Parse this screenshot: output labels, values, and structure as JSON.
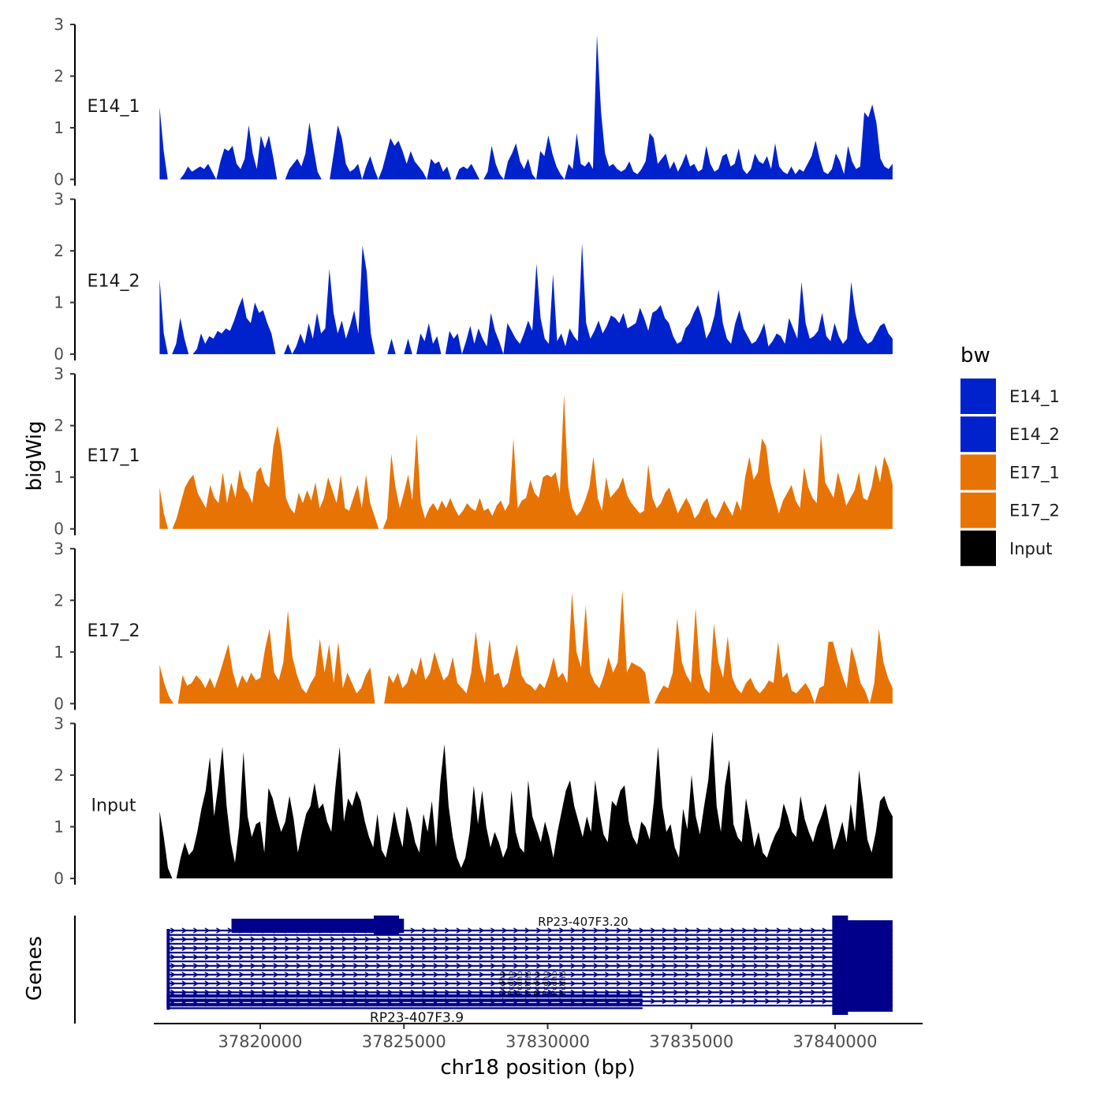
{
  "chart_data": {
    "type": "area",
    "title": "",
    "ylabel": "bigWig",
    "xlabel": "chr18 position (bp)",
    "x_range": [
      37816500,
      37842000
    ],
    "ylim": [
      0,
      3
    ],
    "y_ticks": [
      "0",
      "1",
      "2",
      "3"
    ],
    "x_ticks": [
      {
        "value": 37820000,
        "label": "37820000"
      },
      {
        "value": 37825000,
        "label": "37825000"
      },
      {
        "value": 37830000,
        "label": "37830000"
      },
      {
        "value": 37835000,
        "label": "37835000"
      },
      {
        "value": 37840000,
        "label": "37840000"
      }
    ],
    "legend": {
      "title": "bw",
      "position": "right",
      "entries": [
        {
          "label": "E14_1",
          "color": "#0022CC"
        },
        {
          "label": "E14_2",
          "color": "#0022CC"
        },
        {
          "label": "E17_1",
          "color": "#E87305"
        },
        {
          "label": "E17_2",
          "color": "#E87305"
        },
        {
          "label": "Input",
          "color": "#000000"
        }
      ]
    },
    "tracks": [
      {
        "name": "E14_1",
        "color": "#0022CC",
        "values": [
          1.4,
          0.55,
          0,
          0,
          0,
          0,
          0.1,
          0.25,
          0.15,
          0.2,
          0.25,
          0.2,
          0.3,
          0.15,
          0,
          0.35,
          0.6,
          0.55,
          0.65,
          0.3,
          0.2,
          0.4,
          1.05,
          0.5,
          0.2,
          0.85,
          0.6,
          0.85,
          0.45,
          0,
          0,
          0,
          0.2,
          0.3,
          0.4,
          0.25,
          0.5,
          1.1,
          0.6,
          0.15,
          0,
          0,
          0,
          0.5,
          1.05,
          0.8,
          0.3,
          0.15,
          0.2,
          0.3,
          0,
          0.25,
          0.45,
          0.2,
          0,
          0.2,
          0.5,
          0.8,
          0.65,
          0.75,
          0.55,
          0.3,
          0.55,
          0.35,
          0.25,
          0.15,
          0,
          0.4,
          0.3,
          0.35,
          0.15,
          0.25,
          0,
          0,
          0.2,
          0.25,
          0.2,
          0.3,
          0.15,
          0,
          0,
          0.15,
          0.65,
          0.3,
          0.1,
          0,
          0.35,
          0.5,
          0.7,
          0.35,
          0.2,
          0.4,
          0.1,
          0,
          0.55,
          0.45,
          0.85,
          0.5,
          0.25,
          0.1,
          0,
          0.3,
          0.2,
          0.9,
          0.3,
          0.25,
          0.35,
          0.2,
          2.8,
          1.3,
          0.5,
          0.25,
          0.3,
          0.2,
          0.15,
          0.2,
          0.35,
          0.15,
          0.1,
          0.2,
          0.35,
          0.9,
          0.8,
          0.3,
          0.4,
          0.5,
          0.2,
          0.35,
          0.15,
          0.3,
          0.5,
          0.25,
          0.3,
          0.15,
          0.2,
          0.65,
          0.3,
          0.15,
          0.2,
          0.45,
          0.5,
          0.25,
          0.3,
          0.6,
          0.2,
          0.1,
          0.2,
          0.5,
          0.35,
          0.3,
          0.45,
          0.2,
          0.7,
          0.25,
          0.15,
          0.1,
          0.25,
          0.1,
          0.2,
          0.15,
          0.3,
          0.45,
          0.75,
          0.4,
          0.15,
          0.1,
          0.2,
          0.5,
          0.35,
          0.1,
          0.65,
          0.35,
          0.2,
          0.25,
          1.3,
          1.2,
          1.45,
          1.1,
          0.4,
          0.25,
          0.2,
          0.3
        ]
      },
      {
        "name": "E14_2",
        "color": "#0022CC",
        "values": [
          1.45,
          0.4,
          0,
          0,
          0.2,
          0.7,
          0.3,
          0,
          0,
          0.1,
          0.4,
          0.2,
          0.35,
          0.3,
          0.45,
          0.4,
          0.5,
          0.45,
          0.65,
          0.9,
          1.1,
          0.7,
          0.6,
          1.0,
          0.8,
          0.85,
          0.6,
          0.4,
          0,
          0,
          0,
          0.2,
          0,
          0.15,
          0.4,
          0.2,
          0.6,
          0.3,
          0.8,
          0.4,
          0.5,
          1.65,
          0.8,
          0.4,
          0.65,
          0.3,
          0.55,
          0.85,
          0.4,
          2.1,
          1.6,
          0.4,
          0,
          0,
          0,
          0,
          0.3,
          0,
          0,
          0,
          0.3,
          0,
          0,
          0.4,
          0.25,
          0.6,
          0.2,
          0.35,
          0,
          0,
          0.45,
          0.3,
          0.4,
          0,
          0.25,
          0.55,
          0.2,
          0.5,
          0.3,
          0.15,
          0.8,
          0.45,
          0.25,
          0,
          0.6,
          0.45,
          0.3,
          0.2,
          0.4,
          0.65,
          0.45,
          1.75,
          0.7,
          0.3,
          0.2,
          1.55,
          0.25,
          0.4,
          0.15,
          0.5,
          0.35,
          0.25,
          2.15,
          0.6,
          0.3,
          0.45,
          0.65,
          0.4,
          0.55,
          0.75,
          0.7,
          0.6,
          0.8,
          0.5,
          0.55,
          0.6,
          0.9,
          0.7,
          0.45,
          0.8,
          0.85,
          0.95,
          0.7,
          0.6,
          0.35,
          0.2,
          0.25,
          0.5,
          0.6,
          0.8,
          0.95,
          0.7,
          0.3,
          0.45,
          0.75,
          1.25,
          0.6,
          0.3,
          0.2,
          0.6,
          0.85,
          0.5,
          0.35,
          0.2,
          0.25,
          0.4,
          0.6,
          0.15,
          0.25,
          0.4,
          0.35,
          0.2,
          0.7,
          0.5,
          0.3,
          1.4,
          0.6,
          0.3,
          0.35,
          0.45,
          0.8,
          0.35,
          0.25,
          0.6,
          0.35,
          0.2,
          0.3,
          1.4,
          0.8,
          0.45,
          0.3,
          0.2,
          0.25,
          0.4,
          0.55,
          0.6,
          0.4,
          0.3
        ]
      },
      {
        "name": "E17_1",
        "color": "#E87305",
        "values": [
          0.8,
          0.3,
          0,
          0,
          0.2,
          0.5,
          0.8,
          0.95,
          1.05,
          0.7,
          0.55,
          0.4,
          0.85,
          0.6,
          0.5,
          1.1,
          0.5,
          0.9,
          0.6,
          1.15,
          0.8,
          0.7,
          0.5,
          1.1,
          1.2,
          0.9,
          0.8,
          1.6,
          2.0,
          1.5,
          0.6,
          0.4,
          0.3,
          0.7,
          0.5,
          0.75,
          0.55,
          0.9,
          0.4,
          0.6,
          1.0,
          0.75,
          0.5,
          1.05,
          0.4,
          0.35,
          0.6,
          0.85,
          0.4,
          1.05,
          0.5,
          0.25,
          0,
          0,
          0.2,
          1.45,
          0.8,
          0.4,
          0.7,
          1.05,
          0.55,
          1.85,
          0.5,
          0.2,
          0.4,
          0.5,
          0.35,
          0.55,
          0.4,
          0.6,
          0.4,
          0.25,
          0.35,
          0.5,
          0.4,
          0.35,
          0.6,
          0.35,
          0.4,
          0.25,
          0.45,
          0.55,
          0.35,
          0.5,
          1.75,
          0.4,
          0.55,
          0.6,
          0.95,
          0.7,
          0.6,
          1.0,
          1.05,
          1.0,
          1.1,
          0.7,
          2.6,
          0.8,
          0.4,
          0.25,
          0.35,
          0.55,
          0.8,
          1.4,
          0.6,
          0.35,
          1.0,
          0.6,
          0.7,
          0.8,
          1.0,
          0.65,
          0.5,
          0.4,
          0.3,
          0.35,
          1.25,
          0.6,
          0.4,
          0.5,
          0.7,
          0.8,
          0.55,
          0.3,
          0.45,
          0.6,
          0.45,
          0.2,
          0.3,
          0.5,
          0.6,
          0.3,
          0.2,
          0.35,
          0.55,
          0.4,
          0.25,
          0.55,
          0.35,
          1.0,
          1.4,
          0.95,
          1.1,
          1.75,
          1.6,
          0.9,
          0.6,
          0.3,
          0.55,
          0.7,
          0.85,
          0.55,
          0.4,
          1.2,
          0.8,
          0.6,
          0.5,
          1.85,
          0.9,
          0.75,
          0.6,
          1.1,
          0.8,
          0.45,
          0.6,
          0.75,
          1.1,
          0.6,
          0.55,
          0.8,
          1.25,
          0.9,
          1.4,
          1.2,
          0.85
        ]
      },
      {
        "name": "E17_2",
        "color": "#E87305",
        "values": [
          0.75,
          0.4,
          0.15,
          0,
          0,
          0.55,
          0.35,
          0.4,
          0.55,
          0.45,
          0.3,
          0.5,
          0.3,
          0.55,
          0.85,
          1.15,
          0.6,
          0.3,
          0.55,
          0.4,
          0.6,
          0.45,
          0.5,
          1.05,
          1.45,
          0.6,
          0.45,
          0.8,
          1.8,
          0.9,
          0.55,
          0.3,
          0.2,
          0.4,
          0.55,
          1.25,
          0.6,
          1.15,
          0.4,
          1.2,
          0.3,
          0.6,
          0.4,
          0.2,
          0.3,
          0.55,
          0.7,
          0,
          0,
          0,
          0.55,
          0.4,
          0.6,
          0.3,
          0.4,
          0.7,
          0.55,
          0.9,
          0.45,
          0.6,
          1.0,
          0.7,
          0.45,
          0.55,
          0.9,
          0.4,
          0.3,
          0.2,
          0.6,
          1.4,
          0.7,
          0.4,
          1.25,
          0.55,
          0.6,
          0.3,
          0.4,
          0.8,
          1.15,
          0.55,
          0.4,
          0.35,
          0.25,
          0.4,
          0.3,
          0.55,
          0.9,
          0.5,
          0.6,
          0.4,
          2.15,
          1.0,
          0.7,
          1.9,
          0.6,
          0.4,
          0.3,
          0.55,
          0.9,
          0.6,
          0.8,
          2.2,
          0.6,
          0.8,
          0.75,
          0.7,
          0.6,
          0,
          0,
          0.2,
          0.35,
          0.3,
          0.6,
          1.65,
          0.8,
          0.55,
          0.4,
          1.85,
          0.6,
          0.3,
          0.2,
          1.55,
          0.8,
          0.5,
          1.3,
          0.5,
          0.3,
          0.2,
          0.4,
          0.5,
          0.3,
          0.2,
          0.3,
          0.45,
          0.4,
          1.2,
          0.5,
          0.6,
          0.25,
          0.2,
          0.3,
          0.4,
          0.25,
          0,
          0.3,
          0.35,
          1.2,
          1.2,
          0.85,
          0.55,
          0.3,
          1.1,
          0.8,
          0.4,
          0.25,
          0,
          0.4,
          1.45,
          0.8,
          0.5,
          0.3
        ]
      },
      {
        "name": "Input",
        "color": "#000000",
        "values": [
          1.3,
          0.8,
          0.2,
          0,
          0,
          0.4,
          0.7,
          0.45,
          0.55,
          0.9,
          1.35,
          1.7,
          2.35,
          1.2,
          1.8,
          2.55,
          1.4,
          0.7,
          0.3,
          1.0,
          2.45,
          1.2,
          0.8,
          1.05,
          1.1,
          0.5,
          1.75,
          1.55,
          1.2,
          0.9,
          1.1,
          1.6,
          1.15,
          0.5,
          0.9,
          1.25,
          1.4,
          1.85,
          1.35,
          1.45,
          1.1,
          0.9,
          1.8,
          2.55,
          1.1,
          1.55,
          1.4,
          1.7,
          1.5,
          1.1,
          0.8,
          0.6,
          1.25,
          0.55,
          0.4,
          0.8,
          1.3,
          0.9,
          0.6,
          1.4,
          1.1,
          0.7,
          0.5,
          1.25,
          0.9,
          1.5,
          0.6,
          1.85,
          2.6,
          1.4,
          0.8,
          0.4,
          0.2,
          0.4,
          0.9,
          1.8,
          1.05,
          1.7,
          1.0,
          0.6,
          0.9,
          0.7,
          0.4,
          0.6,
          1.7,
          0.9,
          0.6,
          0.5,
          1.9,
          1.2,
          0.95,
          0.7,
          1.1,
          0.8,
          0.4,
          0.9,
          1.3,
          1.7,
          1.9,
          1.4,
          1.1,
          0.8,
          1.2,
          0.9,
          1.9,
          1.3,
          0.85,
          0.7,
          1.5,
          1.4,
          1.7,
          1.8,
          1.1,
          0.8,
          0.65,
          1.1,
          1.0,
          0.75,
          1.5,
          2.55,
          1.4,
          0.9,
          1.05,
          0.6,
          0.4,
          1.35,
          0.95,
          2.0,
          1.2,
          0.85,
          1.4,
          1.9,
          2.85,
          1.4,
          0.9,
          1.8,
          2.3,
          1.05,
          0.8,
          0.7,
          1.55,
          1.1,
          0.6,
          0.9,
          0.5,
          0.4,
          0.65,
          0.85,
          1.0,
          1.45,
          1.2,
          0.9,
          0.8,
          1.6,
          1.15,
          0.9,
          0.7,
          1.0,
          1.2,
          1.45,
          1.0,
          0.55,
          0.8,
          1.1,
          0.7,
          1.45,
          0.9,
          2.1,
          1.45,
          0.75,
          0.5,
          0.9,
          1.5,
          1.6,
          1.35,
          1.2
        ]
      }
    ],
    "genes_panel": {
      "label": "Genes",
      "labels": [
        "RP23-407F3.20",
        "RP23-407F3.9"
      ],
      "label_positions": [
        37832000,
        37825500
      ],
      "cluster_small_labels": [
        "Pcdhb",
        "Pcdhb",
        "Pcdhb",
        "Pcdhb",
        "Pcdhb",
        "Pcdhb",
        "Pcdhb",
        "Pcdhb"
      ],
      "color": "#00008B",
      "features": [
        {
          "kind": "thick_block",
          "start": 37819000,
          "end": 37825000,
          "row": "top"
        },
        {
          "kind": "thick_block",
          "start": 37820000,
          "end": 37824800,
          "row": "top"
        },
        {
          "kind": "thick_block",
          "start": 37840000,
          "end": 37842000,
          "row": "all"
        },
        {
          "kind": "transcript_bundle",
          "start": 37816800,
          "end": 37842000,
          "rows": 18
        },
        {
          "kind": "transcript_bundle_short",
          "start": 37816800,
          "end": 37833300,
          "rows": 4
        }
      ]
    }
  }
}
